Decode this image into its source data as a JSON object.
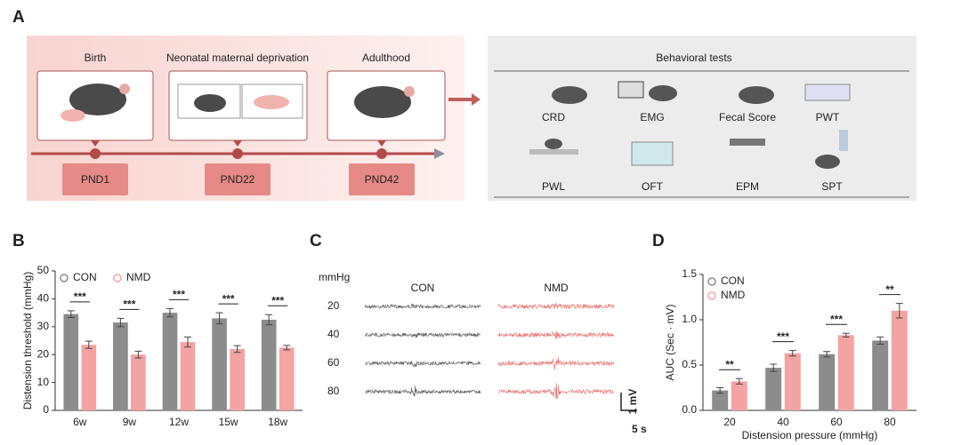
{
  "panel_labels": [
    "A",
    "B",
    "C",
    "D"
  ],
  "diagram": {
    "stages": [
      {
        "label": "Birth",
        "tag": "PND1"
      },
      {
        "label": "Neonatal maternal deprivation",
        "tag": "PND22"
      },
      {
        "label": "Adulthood",
        "tag": "PND42"
      }
    ],
    "tests_title": "Behavioral tests",
    "tests": [
      "CRD",
      "EMG",
      "Fecal Score",
      "PWT",
      "PWL",
      "OFT",
      "EPM",
      "SPT"
    ]
  },
  "traces": {
    "unit_label": "mmHg",
    "groups": [
      "CON",
      "NMD"
    ],
    "levels": [
      "20",
      "40",
      "60",
      "80"
    ],
    "scale_y": "1 mV",
    "scale_x": "5 s"
  },
  "chart_data": [
    {
      "type": "bar",
      "y_label": "Distension threshold (mmHg)",
      "categories": [
        "6w",
        "9w",
        "12w",
        "15w",
        "18w"
      ],
      "series": [
        {
          "name": "CON",
          "color": "#8c8c8c",
          "values": [
            34.5,
            31.5,
            35,
            33,
            32.5
          ],
          "errors": [
            1.2,
            1.5,
            1.5,
            2.0,
            1.8
          ]
        },
        {
          "name": "NMD",
          "color": "#f4a3a3",
          "values": [
            23.5,
            20,
            24.5,
            22,
            22.5
          ],
          "errors": [
            1.3,
            1.2,
            1.8,
            1.2,
            0.8
          ]
        }
      ],
      "significance": [
        "***",
        "***",
        "***",
        "***",
        "***"
      ],
      "ylim": [
        0,
        50
      ],
      "yticks": [
        0,
        10,
        20,
        30,
        40,
        50
      ],
      "legend": "top-left"
    },
    {
      "type": "bar",
      "y_label": "AUC (Sec · mV)",
      "x_label": "Distension pressure (mmHg)",
      "categories": [
        "20",
        "40",
        "60",
        "80"
      ],
      "series": [
        {
          "name": "CON",
          "color": "#8c8c8c",
          "values": [
            0.22,
            0.47,
            0.62,
            0.77
          ],
          "errors": [
            0.03,
            0.04,
            0.03,
            0.04
          ]
        },
        {
          "name": "NMD",
          "color": "#f4a3a3",
          "values": [
            0.32,
            0.63,
            0.83,
            1.1
          ],
          "errors": [
            0.03,
            0.03,
            0.02,
            0.08
          ]
        }
      ],
      "significance": [
        "**",
        "***",
        "***",
        "**"
      ],
      "ylim": [
        0,
        1.5
      ],
      "yticks": [
        {
          "value": 0,
          "label": "0.0"
        },
        {
          "value": 0.5,
          "label": "0.5"
        },
        {
          "value": 1,
          "label": "1.0"
        },
        {
          "value": 1.5,
          "label": "1.5"
        }
      ],
      "legend": "top-left"
    }
  ]
}
